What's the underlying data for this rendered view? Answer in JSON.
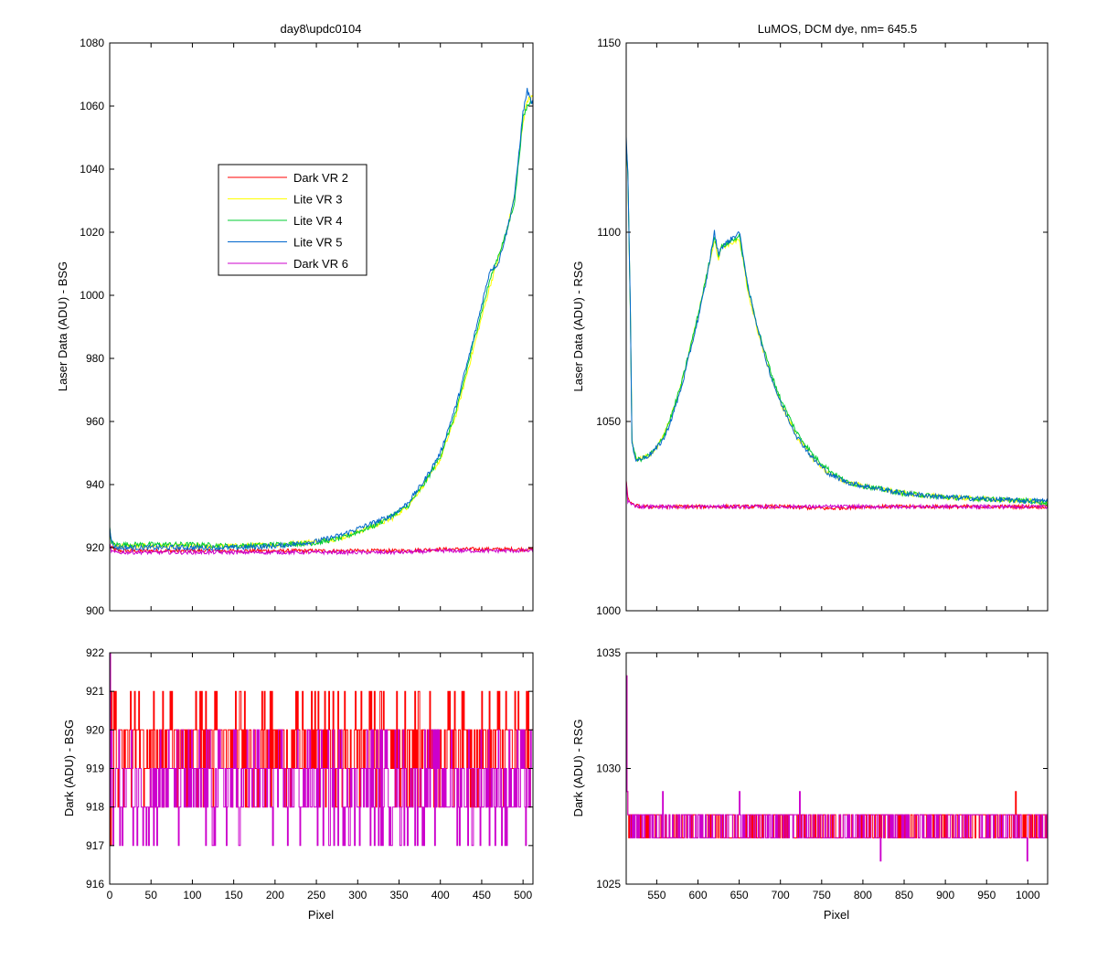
{
  "figure": {
    "xlabel_common": "Pixel"
  },
  "chart_data": [
    {
      "id": "laser_bsg",
      "type": "line",
      "title": "day8\\updc0104",
      "xlabel": "",
      "ylabel": "Laser Data (ADU) - BSG",
      "xlim": [
        0,
        512
      ],
      "ylim": [
        900,
        1080
      ],
      "xticks": [
        0,
        50,
        100,
        150,
        200,
        250,
        300,
        350,
        400,
        450,
        500
      ],
      "yticks": [
        900,
        920,
        940,
        960,
        980,
        1000,
        1020,
        1040,
        1060,
        1080
      ],
      "show_xtick_labels": false,
      "grid": false,
      "legend": "upper-left-inset",
      "series": [
        {
          "name": "Dark VR 2",
          "color": "#ff0000",
          "x": [
            0,
            2,
            5,
            10,
            50,
            100,
            150,
            200,
            250,
            300,
            350,
            400,
            450,
            500,
            512
          ],
          "y": [
            921,
            920,
            919.5,
            919,
            919,
            919,
            919,
            919,
            919,
            919,
            919,
            919.5,
            919.5,
            919.5,
            919.5
          ]
        },
        {
          "name": "Lite VR 3",
          "color": "#ffff00",
          "x": [
            0,
            2,
            5,
            10,
            50,
            100,
            150,
            200,
            250,
            280,
            300,
            320,
            340,
            360,
            380,
            400,
            420,
            440,
            460,
            480,
            490,
            500,
            505,
            512
          ],
          "y": [
            925,
            922,
            921,
            920.5,
            920.5,
            920.5,
            920.5,
            921,
            922,
            923,
            925,
            927,
            929,
            933,
            940,
            948,
            963,
            983,
            1003,
            1020,
            1032,
            1055,
            1062,
            1063
          ]
        },
        {
          "name": "Lite VR 4",
          "color": "#00cc33",
          "x": [
            0,
            2,
            5,
            10,
            50,
            100,
            150,
            200,
            250,
            280,
            300,
            320,
            340,
            360,
            380,
            400,
            420,
            440,
            460,
            480,
            490,
            500,
            505,
            512
          ],
          "y": [
            926,
            922,
            921,
            921,
            921,
            921,
            920.5,
            921,
            921.5,
            923,
            925,
            927,
            930,
            933,
            940,
            949,
            964,
            985,
            1005,
            1020,
            1030,
            1056,
            1060,
            1062
          ]
        },
        {
          "name": "Lite VR 5",
          "color": "#0066cc",
          "x": [
            0,
            2,
            5,
            10,
            50,
            100,
            150,
            200,
            250,
            280,
            300,
            320,
            340,
            360,
            380,
            400,
            420,
            440,
            460,
            470,
            480,
            490,
            500,
            505,
            512
          ],
          "y": [
            927,
            922,
            920.5,
            920,
            920,
            920,
            920,
            920.5,
            922,
            924,
            926,
            928,
            930,
            934,
            941,
            950,
            966,
            986,
            1008,
            1010,
            1020,
            1032,
            1058,
            1065,
            1060
          ]
        },
        {
          "name": "Dark VR 6",
          "color": "#cc00cc",
          "x": [
            0,
            2,
            5,
            10,
            50,
            100,
            150,
            200,
            250,
            300,
            350,
            400,
            450,
            500,
            512
          ],
          "y": [
            921,
            919,
            918.5,
            918.5,
            918.5,
            918.5,
            918.5,
            918.5,
            918.5,
            918.5,
            918.5,
            919,
            919,
            919,
            919
          ]
        }
      ]
    },
    {
      "id": "laser_rsg",
      "type": "line",
      "title": "LuMOS, DCM dye, nm= 645.5",
      "xlabel": "",
      "ylabel": "Laser Data (ADU) - RSG",
      "xlim": [
        513,
        1024
      ],
      "ylim": [
        1000,
        1150
      ],
      "xticks": [
        550,
        600,
        650,
        700,
        750,
        800,
        850,
        900,
        950,
        1000
      ],
      "yticks": [
        1000,
        1050,
        1100,
        1150
      ],
      "show_xtick_labels": false,
      "grid": false,
      "series": [
        {
          "name": "Dark VR 2",
          "color": "#ff0000",
          "x": [
            513,
            515,
            520,
            530,
            600,
            700,
            760,
            800,
            900,
            1000,
            1024
          ],
          "y": [
            1034,
            1030,
            1028,
            1027.5,
            1027.5,
            1027.5,
            1027,
            1027.5,
            1027.5,
            1027.5,
            1027.5
          ]
        },
        {
          "name": "Lite VR 3",
          "color": "#ffff00",
          "x": [
            513,
            515,
            518,
            520,
            525,
            530,
            540,
            550,
            560,
            570,
            580,
            590,
            600,
            610,
            620,
            625,
            628,
            650,
            655,
            660,
            670,
            680,
            690,
            700,
            720,
            740,
            760,
            780,
            800,
            850,
            900,
            950,
            1000,
            1024
          ],
          "y": [
            1123,
            1115,
            1080,
            1045,
            1040,
            1040,
            1041,
            1043,
            1047,
            1053,
            1060,
            1069,
            1078,
            1088,
            1098,
            1093,
            1096,
            1098,
            1092,
            1085,
            1076,
            1068,
            1061,
            1055,
            1046,
            1040,
            1036,
            1034,
            1033,
            1031,
            1030,
            1029.5,
            1029,
            1028.5
          ]
        },
        {
          "name": "Lite VR 4",
          "color": "#00cc33",
          "x": [
            513,
            515,
            518,
            520,
            525,
            530,
            540,
            550,
            560,
            570,
            580,
            590,
            600,
            610,
            620,
            625,
            628,
            650,
            655,
            660,
            670,
            680,
            690,
            700,
            720,
            740,
            760,
            780,
            800,
            850,
            900,
            950,
            1000,
            1024
          ],
          "y": [
            1123,
            1115,
            1080,
            1045,
            1040,
            1040,
            1041,
            1043,
            1047,
            1053,
            1060,
            1069,
            1078,
            1088,
            1099,
            1094,
            1096,
            1099,
            1093,
            1086,
            1077,
            1069,
            1062,
            1056,
            1047,
            1041,
            1037,
            1034,
            1033,
            1031,
            1030,
            1029.5,
            1029,
            1028.5
          ]
        },
        {
          "name": "Lite VR 5",
          "color": "#0066cc",
          "x": [
            513,
            515,
            518,
            520,
            525,
            530,
            540,
            550,
            560,
            570,
            580,
            590,
            600,
            610,
            620,
            625,
            628,
            650,
            655,
            660,
            670,
            680,
            690,
            700,
            720,
            740,
            760,
            780,
            800,
            850,
            900,
            950,
            1000,
            1024
          ],
          "y": [
            1125,
            1116,
            1080,
            1044,
            1040,
            1040,
            1041,
            1043,
            1046,
            1052,
            1059,
            1068,
            1077,
            1087,
            1100,
            1094,
            1096,
            1100,
            1094,
            1086,
            1077,
            1068,
            1061,
            1055,
            1046,
            1040,
            1036,
            1034,
            1033,
            1031,
            1030,
            1029.5,
            1029,
            1029
          ]
        },
        {
          "name": "Dark VR 6",
          "color": "#cc00cc",
          "x": [
            513,
            515,
            520,
            530,
            600,
            700,
            800,
            900,
            1000,
            1024
          ],
          "y": [
            1034,
            1029,
            1028,
            1027.5,
            1027.5,
            1027.5,
            1027.5,
            1027.5,
            1027.5,
            1027.5
          ]
        }
      ]
    },
    {
      "id": "dark_bsg",
      "type": "line",
      "title": "",
      "xlabel": "Pixel",
      "ylabel": "Dark (ADU) - BSG",
      "xlim": [
        0,
        512
      ],
      "ylim": [
        916,
        922
      ],
      "xticks": [
        0,
        50,
        100,
        150,
        200,
        250,
        300,
        350,
        400,
        450,
        500
      ],
      "yticks": [
        916,
        917,
        918,
        919,
        920,
        921,
        922
      ],
      "show_xtick_labels": true,
      "grid": false,
      "noise": true,
      "series": [
        {
          "name": "Dark VR 2",
          "color": "#ff0000",
          "base": 919,
          "levels": [
            918,
            919,
            920,
            921
          ],
          "start": [
            922,
            917,
            921
          ]
        },
        {
          "name": "Dark VR 6",
          "color": "#cc00cc",
          "base": 919,
          "levels": [
            917,
            918,
            919,
            920
          ],
          "start": [
            922,
            918,
            920
          ]
        }
      ]
    },
    {
      "id": "dark_rsg",
      "type": "line",
      "title": "",
      "xlabel": "Pixel",
      "ylabel": "Dark (ADU) - RSG",
      "xlim": [
        513,
        1024
      ],
      "ylim": [
        1025,
        1035
      ],
      "xticks": [
        550,
        600,
        650,
        700,
        750,
        800,
        850,
        900,
        950,
        1000
      ],
      "yticks": [
        1025,
        1030,
        1035
      ],
      "show_xtick_labels": true,
      "grid": false,
      "noise": true,
      "series": [
        {
          "name": "Dark VR 2",
          "color": "#ff0000",
          "base": 1027,
          "levels": [
            1027,
            1028
          ],
          "start": [
            1034,
            1029,
            1028
          ]
        },
        {
          "name": "Dark VR 6",
          "color": "#cc00cc",
          "base": 1027,
          "levels": [
            1027,
            1028
          ],
          "start": [
            1034,
            1029,
            1028
          ]
        }
      ]
    }
  ]
}
